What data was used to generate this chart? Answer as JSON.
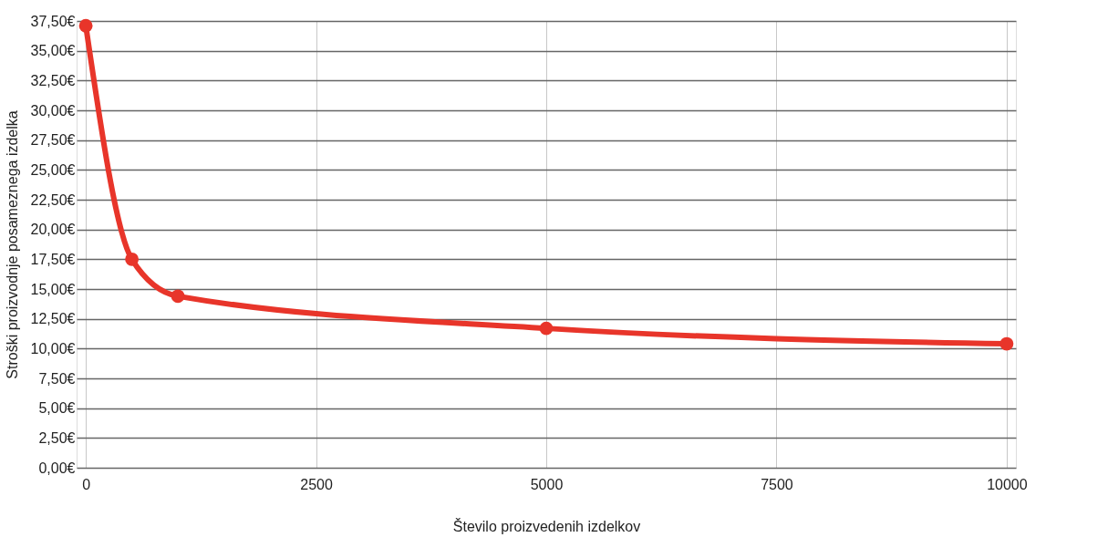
{
  "chart_data": {
    "type": "line",
    "xlabel": "Število proizvedenih izdelkov",
    "ylabel": "Stroški proizvodnje posameznega izdelka",
    "x": [
      0,
      500,
      1000,
      5000,
      10000
    ],
    "series": [
      {
        "color": "#e8352a",
        "values": [
          37.1,
          17.5,
          14.4,
          11.7,
          10.4
        ]
      }
    ],
    "xlim": [
      -100,
      10100
    ],
    "xticks": [
      0,
      2500,
      5000,
      7500,
      10000
    ],
    "ylim": [
      0,
      37.5
    ],
    "yticks": [
      {
        "value": 0,
        "label": "0,00€"
      },
      {
        "value": 2.5,
        "label": "2,50€"
      },
      {
        "value": 5,
        "label": "5,00€"
      },
      {
        "value": 7.5,
        "label": "7,50€"
      },
      {
        "value": 10,
        "label": "10,00€"
      },
      {
        "value": 12.5,
        "label": "12,50€"
      },
      {
        "value": 15,
        "label": "15,00€"
      },
      {
        "value": 17.5,
        "label": "17,50€"
      },
      {
        "value": 20,
        "label": "20,00€"
      },
      {
        "value": 22.5,
        "label": "22,50€"
      },
      {
        "value": 25,
        "label": "25,00€"
      },
      {
        "value": 27.5,
        "label": "27,50€"
      },
      {
        "value": 30,
        "label": "30,00€"
      },
      {
        "value": 32.5,
        "label": "32,50€"
      },
      {
        "value": 35,
        "label": "35,00€"
      },
      {
        "value": 37.5,
        "label": "37,50€"
      }
    ],
    "grid": true,
    "marker": "circle",
    "line_style": "solid"
  }
}
